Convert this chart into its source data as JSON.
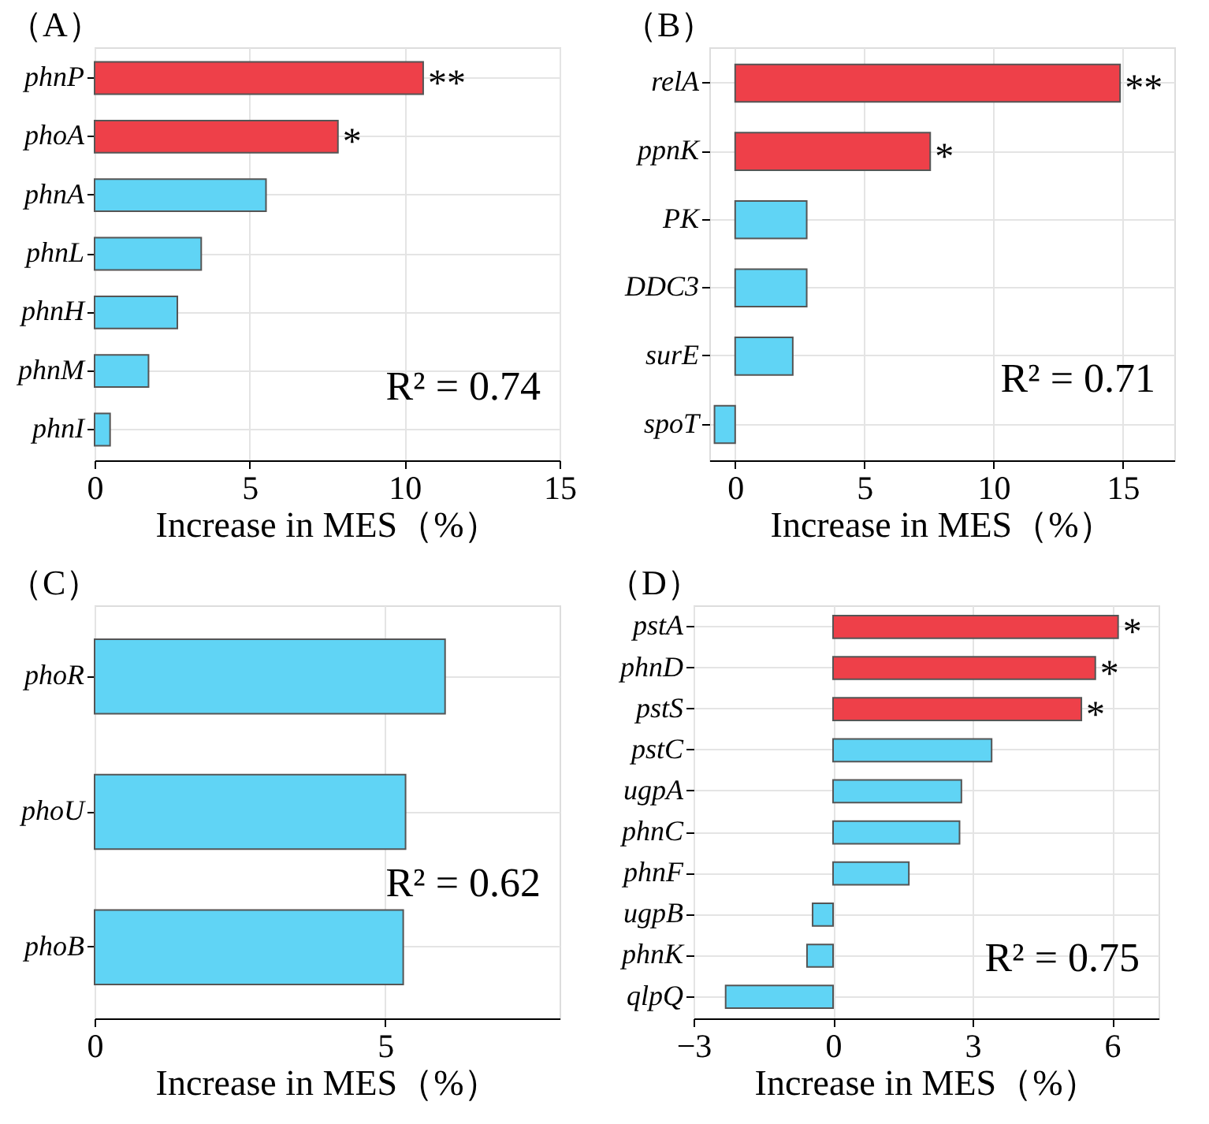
{
  "chart_data": [
    {
      "type": "bar",
      "orientation": "horizontal",
      "title": "（A）",
      "xlabel": "Increase in MES（%）",
      "categories": [
        "phnP",
        "phoA",
        "phnA",
        "phnL",
        "phnH",
        "phnM",
        "phnI"
      ],
      "values": [
        10.6,
        7.85,
        5.53,
        3.44,
        2.67,
        1.74,
        0.5
      ],
      "colors": [
        "#ee4049",
        "#ee4049",
        "#60d4f5",
        "#60d4f5",
        "#60d4f5",
        "#60d4f5",
        "#60d4f5"
      ],
      "xlim": [
        0,
        15
      ],
      "xticks": [
        0,
        5,
        10,
        15
      ],
      "grid": true,
      "annotations": [
        {
          "text": "**",
          "x": 10.6,
          "y": "phnP"
        },
        {
          "text": "*",
          "x": 7.85,
          "y": "phoA"
        },
        "R² = 0.74"
      ]
    },
    {
      "type": "bar",
      "orientation": "horizontal",
      "title": "（B）",
      "xlabel": "Increase in MES（%）",
      "categories": [
        "relA",
        "ppnK",
        "PK",
        "DDC3",
        "surE",
        "spoT"
      ],
      "values": [
        14.9,
        7.55,
        2.77,
        2.77,
        2.23,
        -0.8
      ],
      "colors": [
        "#ee4049",
        "#ee4049",
        "#60d4f5",
        "#60d4f5",
        "#60d4f5",
        "#60d4f5"
      ],
      "xlim": [
        -1.0,
        17.0
      ],
      "xticks": [
        0,
        5,
        10,
        15
      ],
      "grid": true,
      "annotations": [
        {
          "text": "**",
          "x": 14.9,
          "y": "relA"
        },
        {
          "text": "*",
          "x": 7.55,
          "y": "ppnK"
        },
        "R² = 0.71"
      ]
    },
    {
      "type": "bar",
      "orientation": "horizontal",
      "title": "（C）",
      "xlabel": "Increase in MES（%）",
      "categories": [
        "phoR",
        "phoU",
        "phoB"
      ],
      "values": [
        6.03,
        5.35,
        5.31
      ],
      "colors": [
        "#60d4f5",
        "#60d4f5",
        "#60d4f5"
      ],
      "xlim": [
        0,
        8
      ],
      "xticks": [
        0,
        5
      ],
      "grid": true,
      "annotations": [
        "R² = 0.62"
      ]
    },
    {
      "type": "bar",
      "orientation": "horizontal",
      "title": "（D）",
      "xlabel": "Increase in MES（%）",
      "categories": [
        "pstA",
        "phnD",
        "pstS",
        "pstC",
        "ugpA",
        "phnC",
        "phnF",
        "ugpB",
        "phnK",
        "qlpQ"
      ],
      "values": [
        6.13,
        5.64,
        5.34,
        3.41,
        2.76,
        2.72,
        1.63,
        -0.44,
        -0.56,
        -2.31
      ],
      "colors": [
        "#ee4049",
        "#ee4049",
        "#ee4049",
        "#60d4f5",
        "#60d4f5",
        "#60d4f5",
        "#60d4f5",
        "#60d4f5",
        "#60d4f5",
        "#60d4f5"
      ],
      "xlim": [
        -3,
        7
      ],
      "xticks": [
        -3,
        0,
        3,
        6
      ],
      "grid": true,
      "annotations": [
        {
          "text": "*",
          "x": 6.13,
          "y": "pstA"
        },
        {
          "text": "*",
          "x": 5.64,
          "y": "phnD"
        },
        {
          "text": "*",
          "x": 5.34,
          "y": "pstS"
        },
        "R² = 0.75"
      ]
    }
  ]
}
